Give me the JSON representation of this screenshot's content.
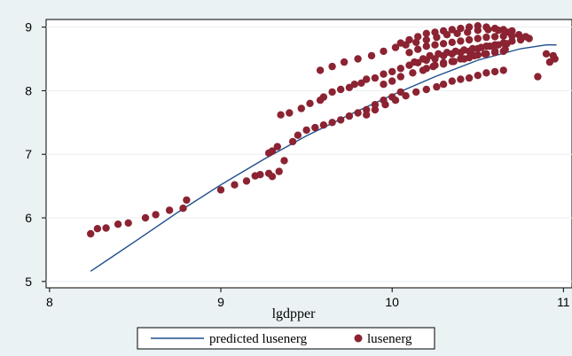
{
  "chart_data": {
    "type": "scatter",
    "xlabel": "lgdpper",
    "ylabel": "",
    "xlim": [
      7.98,
      11.05
    ],
    "ylim": [
      4.9,
      9.12
    ],
    "xticks": [
      "8",
      "9",
      "10",
      "11"
    ],
    "yticks": [
      "5",
      "6",
      "7",
      "8",
      "9"
    ],
    "grid": "horizontal",
    "legend_position": "bottom",
    "colors": {
      "line": "#1f4e8c",
      "points": "#8b2332",
      "plot_bg": "#ffffff",
      "outer_bg": "#eaf2f3",
      "grid": "#e8eef0"
    },
    "series": [
      {
        "name": "predicted lusenerg",
        "kind": "line",
        "x": [
          8.24,
          8.5,
          8.75,
          9.0,
          9.25,
          9.5,
          9.75,
          10.0,
          10.25,
          10.5,
          10.75,
          10.9,
          10.96
        ],
        "y": [
          5.16,
          5.63,
          6.09,
          6.52,
          6.92,
          7.29,
          7.62,
          7.93,
          8.22,
          8.48,
          8.66,
          8.72,
          8.72
        ]
      },
      {
        "name": "lusenerg",
        "kind": "scatter",
        "x": [
          8.24,
          8.28,
          8.33,
          8.4,
          8.46,
          8.56,
          8.62,
          8.7,
          8.78,
          8.8,
          9.0,
          9.08,
          9.15,
          9.2,
          9.23,
          9.28,
          9.3,
          9.34,
          9.37,
          9.28,
          9.3,
          9.33,
          9.42,
          9.45,
          9.5,
          9.55,
          9.6,
          9.65,
          9.7,
          9.75,
          9.8,
          9.85,
          9.9,
          9.95,
          10.0,
          10.05,
          9.35,
          9.4,
          9.47,
          9.52,
          9.58,
          9.6,
          9.65,
          9.7,
          9.75,
          9.78,
          9.82,
          9.85,
          9.9,
          9.95,
          10.0,
          10.05,
          10.1,
          10.15,
          10.2,
          10.25,
          10.3,
          10.35,
          10.4,
          10.45,
          10.5,
          10.55,
          10.6,
          10.65,
          10.7,
          10.75,
          10.8,
          9.58,
          9.65,
          9.72,
          9.8,
          9.88,
          9.95,
          10.02,
          10.08,
          10.14,
          10.2,
          10.26,
          10.32,
          10.38,
          10.44,
          10.5,
          10.56,
          10.62,
          10.68,
          10.74,
          10.78,
          10.05,
          10.1,
          10.15,
          10.2,
          10.25,
          10.3,
          10.35,
          10.4,
          10.45,
          10.5,
          10.55,
          10.6,
          10.65,
          10.7,
          10.1,
          10.15,
          10.2,
          10.25,
          10.3,
          10.35,
          10.4,
          10.45,
          10.5,
          10.55,
          10.6,
          10.65,
          10.7,
          10.13,
          10.18,
          10.22,
          10.27,
          10.32,
          10.37,
          10.42,
          10.47,
          10.52,
          10.57,
          10.62,
          10.67,
          10.2,
          10.25,
          10.3,
          10.35,
          10.4,
          10.45,
          10.5,
          10.55,
          10.6,
          10.65,
          9.95,
          10.0,
          10.05,
          10.12,
          10.18,
          10.24,
          10.3,
          10.36,
          10.42,
          10.48,
          10.54,
          10.6,
          10.66,
          9.85,
          9.9,
          9.96,
          10.02,
          10.08,
          10.14,
          10.2,
          10.26,
          10.3,
          10.35,
          10.4,
          10.45,
          10.5,
          10.55,
          10.6,
          10.65,
          10.92,
          10.95,
          10.94,
          10.85,
          10.9
        ],
        "y": [
          5.75,
          5.83,
          5.84,
          5.9,
          5.92,
          6.0,
          6.05,
          6.12,
          6.15,
          6.28,
          6.44,
          6.52,
          6.58,
          6.66,
          6.68,
          6.7,
          6.65,
          6.73,
          6.9,
          7.02,
          7.05,
          7.12,
          7.2,
          7.3,
          7.38,
          7.42,
          7.46,
          7.5,
          7.54,
          7.6,
          7.65,
          7.7,
          7.78,
          7.85,
          7.9,
          7.98,
          7.62,
          7.65,
          7.72,
          7.8,
          7.85,
          7.9,
          7.98,
          8.02,
          8.05,
          8.1,
          8.12,
          8.18,
          8.2,
          8.26,
          8.3,
          8.35,
          8.4,
          8.44,
          8.48,
          8.5,
          8.55,
          8.58,
          8.6,
          8.62,
          8.66,
          8.7,
          8.72,
          8.75,
          8.78,
          8.8,
          8.82,
          8.32,
          8.38,
          8.45,
          8.5,
          8.55,
          8.62,
          8.68,
          8.72,
          8.76,
          8.8,
          8.84,
          8.88,
          8.9,
          8.92,
          8.95,
          8.96,
          8.95,
          8.92,
          8.88,
          8.85,
          8.75,
          8.8,
          8.85,
          8.9,
          8.92,
          8.94,
          8.96,
          8.98,
          9.0,
          9.02,
          9.0,
          8.98,
          8.96,
          8.94,
          8.6,
          8.65,
          8.7,
          8.72,
          8.74,
          8.76,
          8.78,
          8.8,
          8.82,
          8.84,
          8.85,
          8.86,
          8.86,
          8.45,
          8.5,
          8.55,
          8.58,
          8.6,
          8.62,
          8.64,
          8.66,
          8.68,
          8.7,
          8.72,
          8.74,
          8.35,
          8.4,
          8.44,
          8.46,
          8.5,
          8.52,
          8.56,
          8.58,
          8.6,
          8.62,
          8.1,
          8.15,
          8.22,
          8.28,
          8.32,
          8.38,
          8.42,
          8.46,
          8.5,
          8.55,
          8.58,
          8.62,
          8.65,
          7.62,
          7.7,
          7.78,
          7.85,
          7.92,
          7.98,
          8.02,
          8.06,
          8.1,
          8.15,
          8.18,
          8.2,
          8.24,
          8.28,
          8.3,
          8.32,
          8.45,
          8.5,
          8.55,
          8.22,
          8.58
        ]
      }
    ]
  }
}
